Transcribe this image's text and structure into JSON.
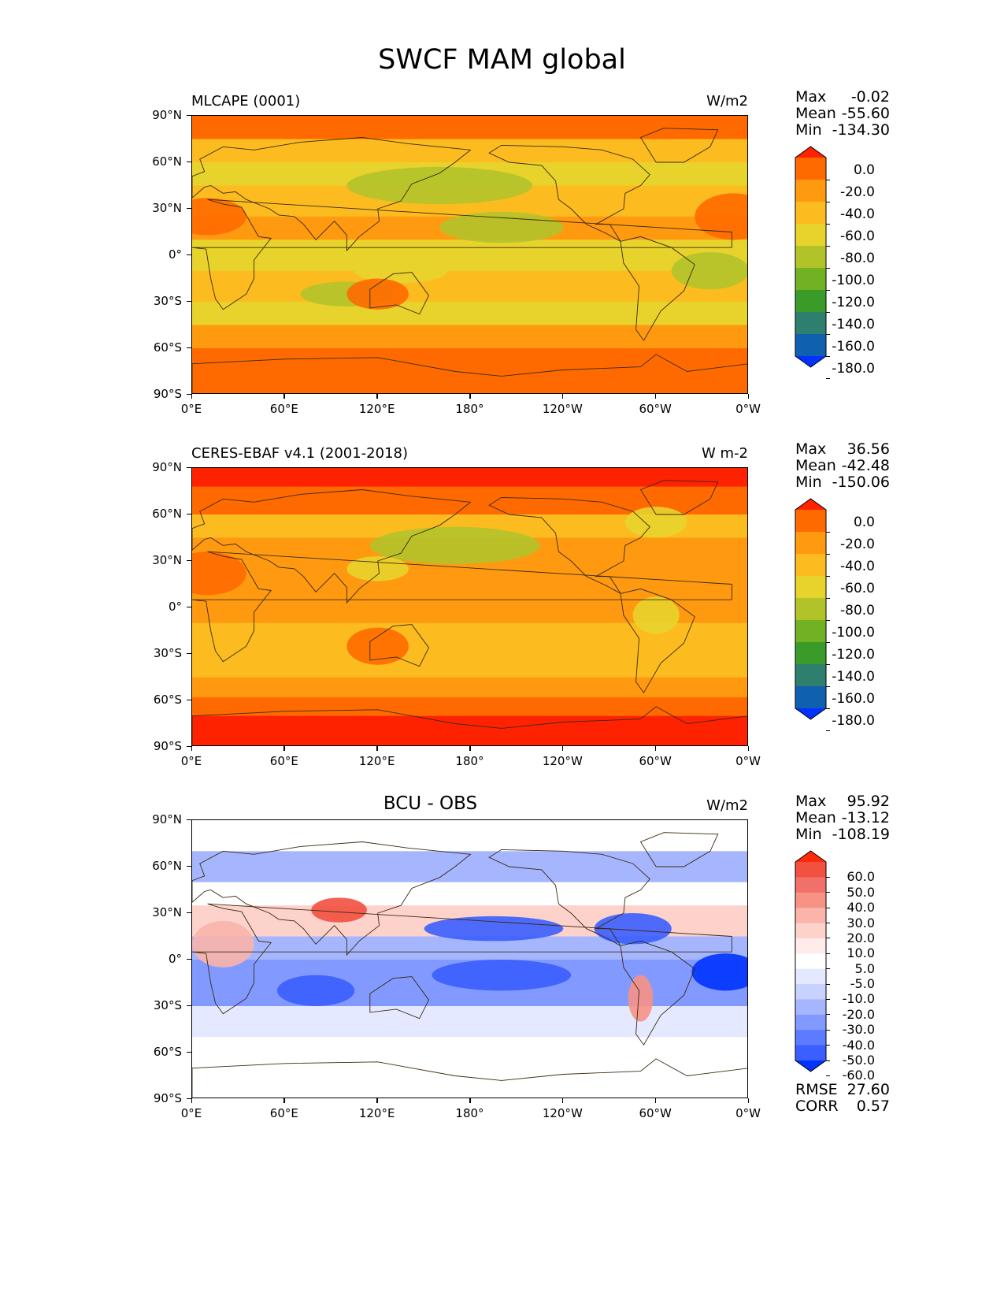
{
  "title": "SWCF MAM global",
  "colors": {
    "frame": "#000000",
    "coast": "#3a2a10"
  },
  "axis": {
    "lat_labels": [
      "90°N",
      "60°N",
      "30°N",
      "0°",
      "30°S",
      "60°S",
      "90°S"
    ],
    "lon_labels": [
      "0°E",
      "60°E",
      "120°E",
      "180°",
      "120°W",
      "60°W",
      "0°W"
    ]
  },
  "panels": [
    {
      "id": "model",
      "title": "MLCAPE (0001)",
      "center_title": "",
      "units": "W/m2",
      "stats": [
        {
          "label": "Max",
          "value": "-0.02"
        },
        {
          "label": "Mean",
          "value": "-55.60"
        },
        {
          "label": "Min",
          "value": "-134.30"
        }
      ],
      "colorbar": {
        "labels": [
          "0.0",
          "-20.0",
          "-40.0",
          "-60.0",
          "-80.0",
          "-100.0",
          "-120.0",
          "-140.0",
          "-160.0",
          "-180.0"
        ],
        "colors": [
          "#ff2200",
          "#ff6a00",
          "#ff9a10",
          "#fcbc20",
          "#e8d32c",
          "#b2c32a",
          "#72b124",
          "#3a9c28",
          "#2e7f6e",
          "#1060b0",
          "#0033ff"
        ]
      }
    },
    {
      "id": "obs",
      "title": "CERES-EBAF v4.1 (2001-2018)",
      "center_title": "",
      "units": "W m-2",
      "stats": [
        {
          "label": "Max",
          "value": "36.56"
        },
        {
          "label": "Mean",
          "value": "-42.48"
        },
        {
          "label": "Min",
          "value": "-150.06"
        }
      ],
      "colorbar": {
        "labels": [
          "0.0",
          "-20.0",
          "-40.0",
          "-60.0",
          "-80.0",
          "-100.0",
          "-120.0",
          "-140.0",
          "-160.0",
          "-180.0"
        ],
        "colors": [
          "#ff2200",
          "#ff6a00",
          "#ff9a10",
          "#fcbc20",
          "#e8d32c",
          "#b2c32a",
          "#72b124",
          "#3a9c28",
          "#2e7f6e",
          "#1060b0",
          "#0033ff"
        ]
      }
    },
    {
      "id": "diff",
      "title": "",
      "center_title": "BCU - OBS",
      "units": "W/m2",
      "stats": [
        {
          "label": "Max",
          "value": "95.92"
        },
        {
          "label": "Mean",
          "value": "-13.12"
        },
        {
          "label": "Min",
          "value": "-108.19"
        }
      ],
      "bottom_stats": [
        {
          "label": "RMSE",
          "value": "27.60"
        },
        {
          "label": "CORR",
          "value": "0.57"
        }
      ],
      "colorbar": {
        "labels": [
          "60.0",
          "50.0",
          "40.0",
          "30.0",
          "20.0",
          "10.0",
          "5.0",
          "-5.0",
          "-10.0",
          "-20.0",
          "-30.0",
          "-40.0",
          "-50.0",
          "-60.0"
        ],
        "colors": [
          "#ff2a0a",
          "#f25040",
          "#f2706a",
          "#f79285",
          "#fab4aa",
          "#fcd2cb",
          "#ffecea",
          "#ffffff",
          "#e4e9ff",
          "#c7d2ff",
          "#a5b6ff",
          "#8299ff",
          "#5c7bff",
          "#3a5eff",
          "#0033ff"
        ]
      }
    }
  ]
}
